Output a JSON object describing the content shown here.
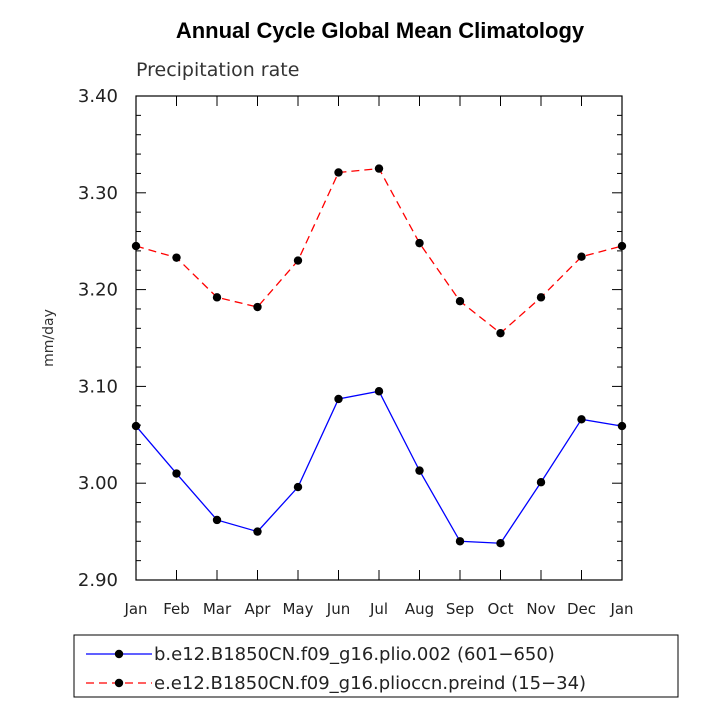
{
  "chart_data": {
    "type": "line",
    "title": "Annual Cycle Global Mean Climatology",
    "subtitle": "Precipitation rate",
    "xlabel": "",
    "ylabel": "mm/day",
    "categories": [
      "Jan",
      "Feb",
      "Mar",
      "Apr",
      "May",
      "Jun",
      "Jul",
      "Aug",
      "Sep",
      "Oct",
      "Nov",
      "Dec",
      "Jan"
    ],
    "ylim": [
      2.9,
      3.4
    ],
    "yticks": [
      "2.90",
      "3.00",
      "3.10",
      "3.20",
      "3.30",
      "3.40"
    ],
    "grid": false,
    "legend_position": "bottom",
    "series": [
      {
        "name": "b.e12.B1850CN.f09_g16.plio.002 (601−650)",
        "color": "#0000ff",
        "style": "solid",
        "marker": "dot",
        "values": [
          3.059,
          3.01,
          2.962,
          2.95,
          2.996,
          3.087,
          3.095,
          3.013,
          2.94,
          2.938,
          3.001,
          3.066,
          3.059
        ]
      },
      {
        "name": "e.e12.B1850CN.f09_g16.plioccn.preind (15−34)",
        "color": "#ff0000",
        "style": "dashed",
        "marker": "dot",
        "values": [
          3.245,
          3.233,
          3.192,
          3.182,
          3.23,
          3.321,
          3.325,
          3.248,
          3.188,
          3.155,
          3.192,
          3.234,
          3.245
        ]
      }
    ]
  }
}
